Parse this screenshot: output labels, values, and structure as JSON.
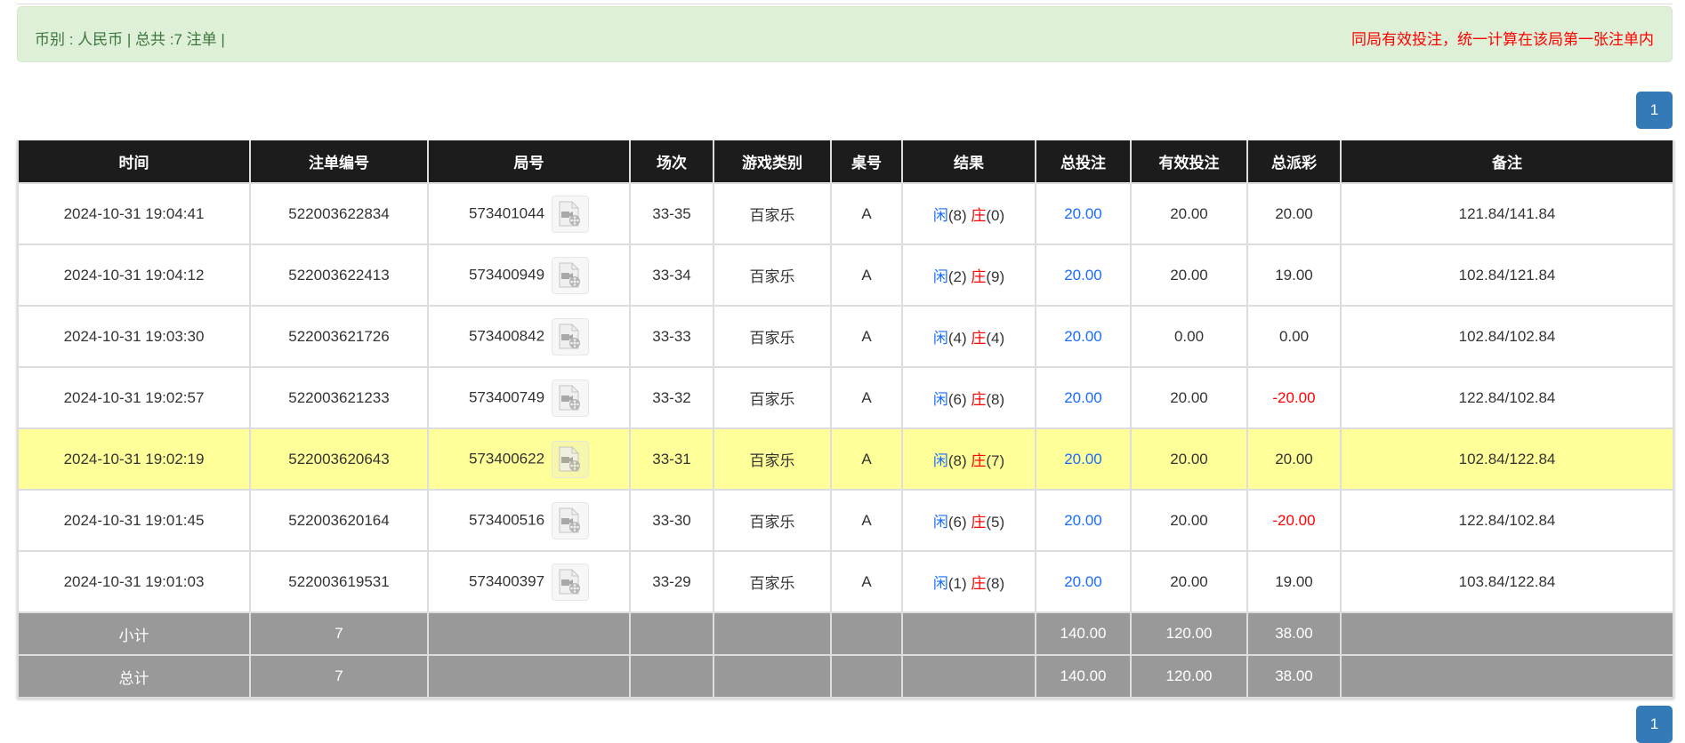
{
  "summary": {
    "left": "币别 : 人民币 | 总共 :7 注单 |",
    "right": "同局有效投注，统一计算在该局第一张注单内"
  },
  "pagination": {
    "current": "1"
  },
  "colors": {
    "player": "#1a6cff",
    "banker": "#ff0000",
    "highlight": "#ffff99",
    "header_bg": "#1c1c1c",
    "footer_bg": "#999999"
  },
  "table": {
    "headers": [
      "时间",
      "注单编号",
      "局号",
      "场次",
      "游戏类别",
      "桌号",
      "结果",
      "总投注",
      "有效投注",
      "总派彩",
      "备注"
    ],
    "player_label": "闲",
    "banker_label": "庄",
    "rows": [
      {
        "time": "2024-10-31 19:04:41",
        "bet_no": "522003622834",
        "round": "573401044",
        "session": "33-35",
        "game": "百家乐",
        "table": "A",
        "player": "(8)",
        "banker": "(0)",
        "total_bet": "20.00",
        "valid_bet": "20.00",
        "payout": "20.00",
        "payout_negative": false,
        "note": "121.84/141.84",
        "highlight": false
      },
      {
        "time": "2024-10-31 19:04:12",
        "bet_no": "522003622413",
        "round": "573400949",
        "session": "33-34",
        "game": "百家乐",
        "table": "A",
        "player": "(2)",
        "banker": "(9)",
        "total_bet": "20.00",
        "valid_bet": "20.00",
        "payout": "19.00",
        "payout_negative": false,
        "note": "102.84/121.84",
        "highlight": false
      },
      {
        "time": "2024-10-31 19:03:30",
        "bet_no": "522003621726",
        "round": "573400842",
        "session": "33-33",
        "game": "百家乐",
        "table": "A",
        "player": "(4)",
        "banker": "(4)",
        "total_bet": "20.00",
        "valid_bet": "0.00",
        "payout": "0.00",
        "payout_negative": false,
        "note": "102.84/102.84",
        "highlight": false
      },
      {
        "time": "2024-10-31 19:02:57",
        "bet_no": "522003621233",
        "round": "573400749",
        "session": "33-32",
        "game": "百家乐",
        "table": "A",
        "player": "(6)",
        "banker": "(8)",
        "total_bet": "20.00",
        "valid_bet": "20.00",
        "payout": "-20.00",
        "payout_negative": true,
        "note": "122.84/102.84",
        "highlight": false
      },
      {
        "time": "2024-10-31 19:02:19",
        "bet_no": "522003620643",
        "round": "573400622",
        "session": "33-31",
        "game": "百家乐",
        "table": "A",
        "player": "(8)",
        "banker": "(7)",
        "total_bet": "20.00",
        "valid_bet": "20.00",
        "payout": "20.00",
        "payout_negative": false,
        "note": "102.84/122.84",
        "highlight": true
      },
      {
        "time": "2024-10-31 19:01:45",
        "bet_no": "522003620164",
        "round": "573400516",
        "session": "33-30",
        "game": "百家乐",
        "table": "A",
        "player": "(6)",
        "banker": "(5)",
        "total_bet": "20.00",
        "valid_bet": "20.00",
        "payout": "-20.00",
        "payout_negative": true,
        "note": "122.84/102.84",
        "highlight": false
      },
      {
        "time": "2024-10-31 19:01:03",
        "bet_no": "522003619531",
        "round": "573400397",
        "session": "33-29",
        "game": "百家乐",
        "table": "A",
        "player": "(1)",
        "banker": "(8)",
        "total_bet": "20.00",
        "valid_bet": "20.00",
        "payout": "19.00",
        "payout_negative": false,
        "note": "103.84/122.84",
        "highlight": false
      }
    ],
    "footer": [
      {
        "label": "小计",
        "count": "7",
        "total_bet": "140.00",
        "valid_bet": "120.00",
        "payout": "38.00"
      },
      {
        "label": "总计",
        "count": "7",
        "total_bet": "140.00",
        "valid_bet": "120.00",
        "payout": "38.00"
      }
    ]
  }
}
